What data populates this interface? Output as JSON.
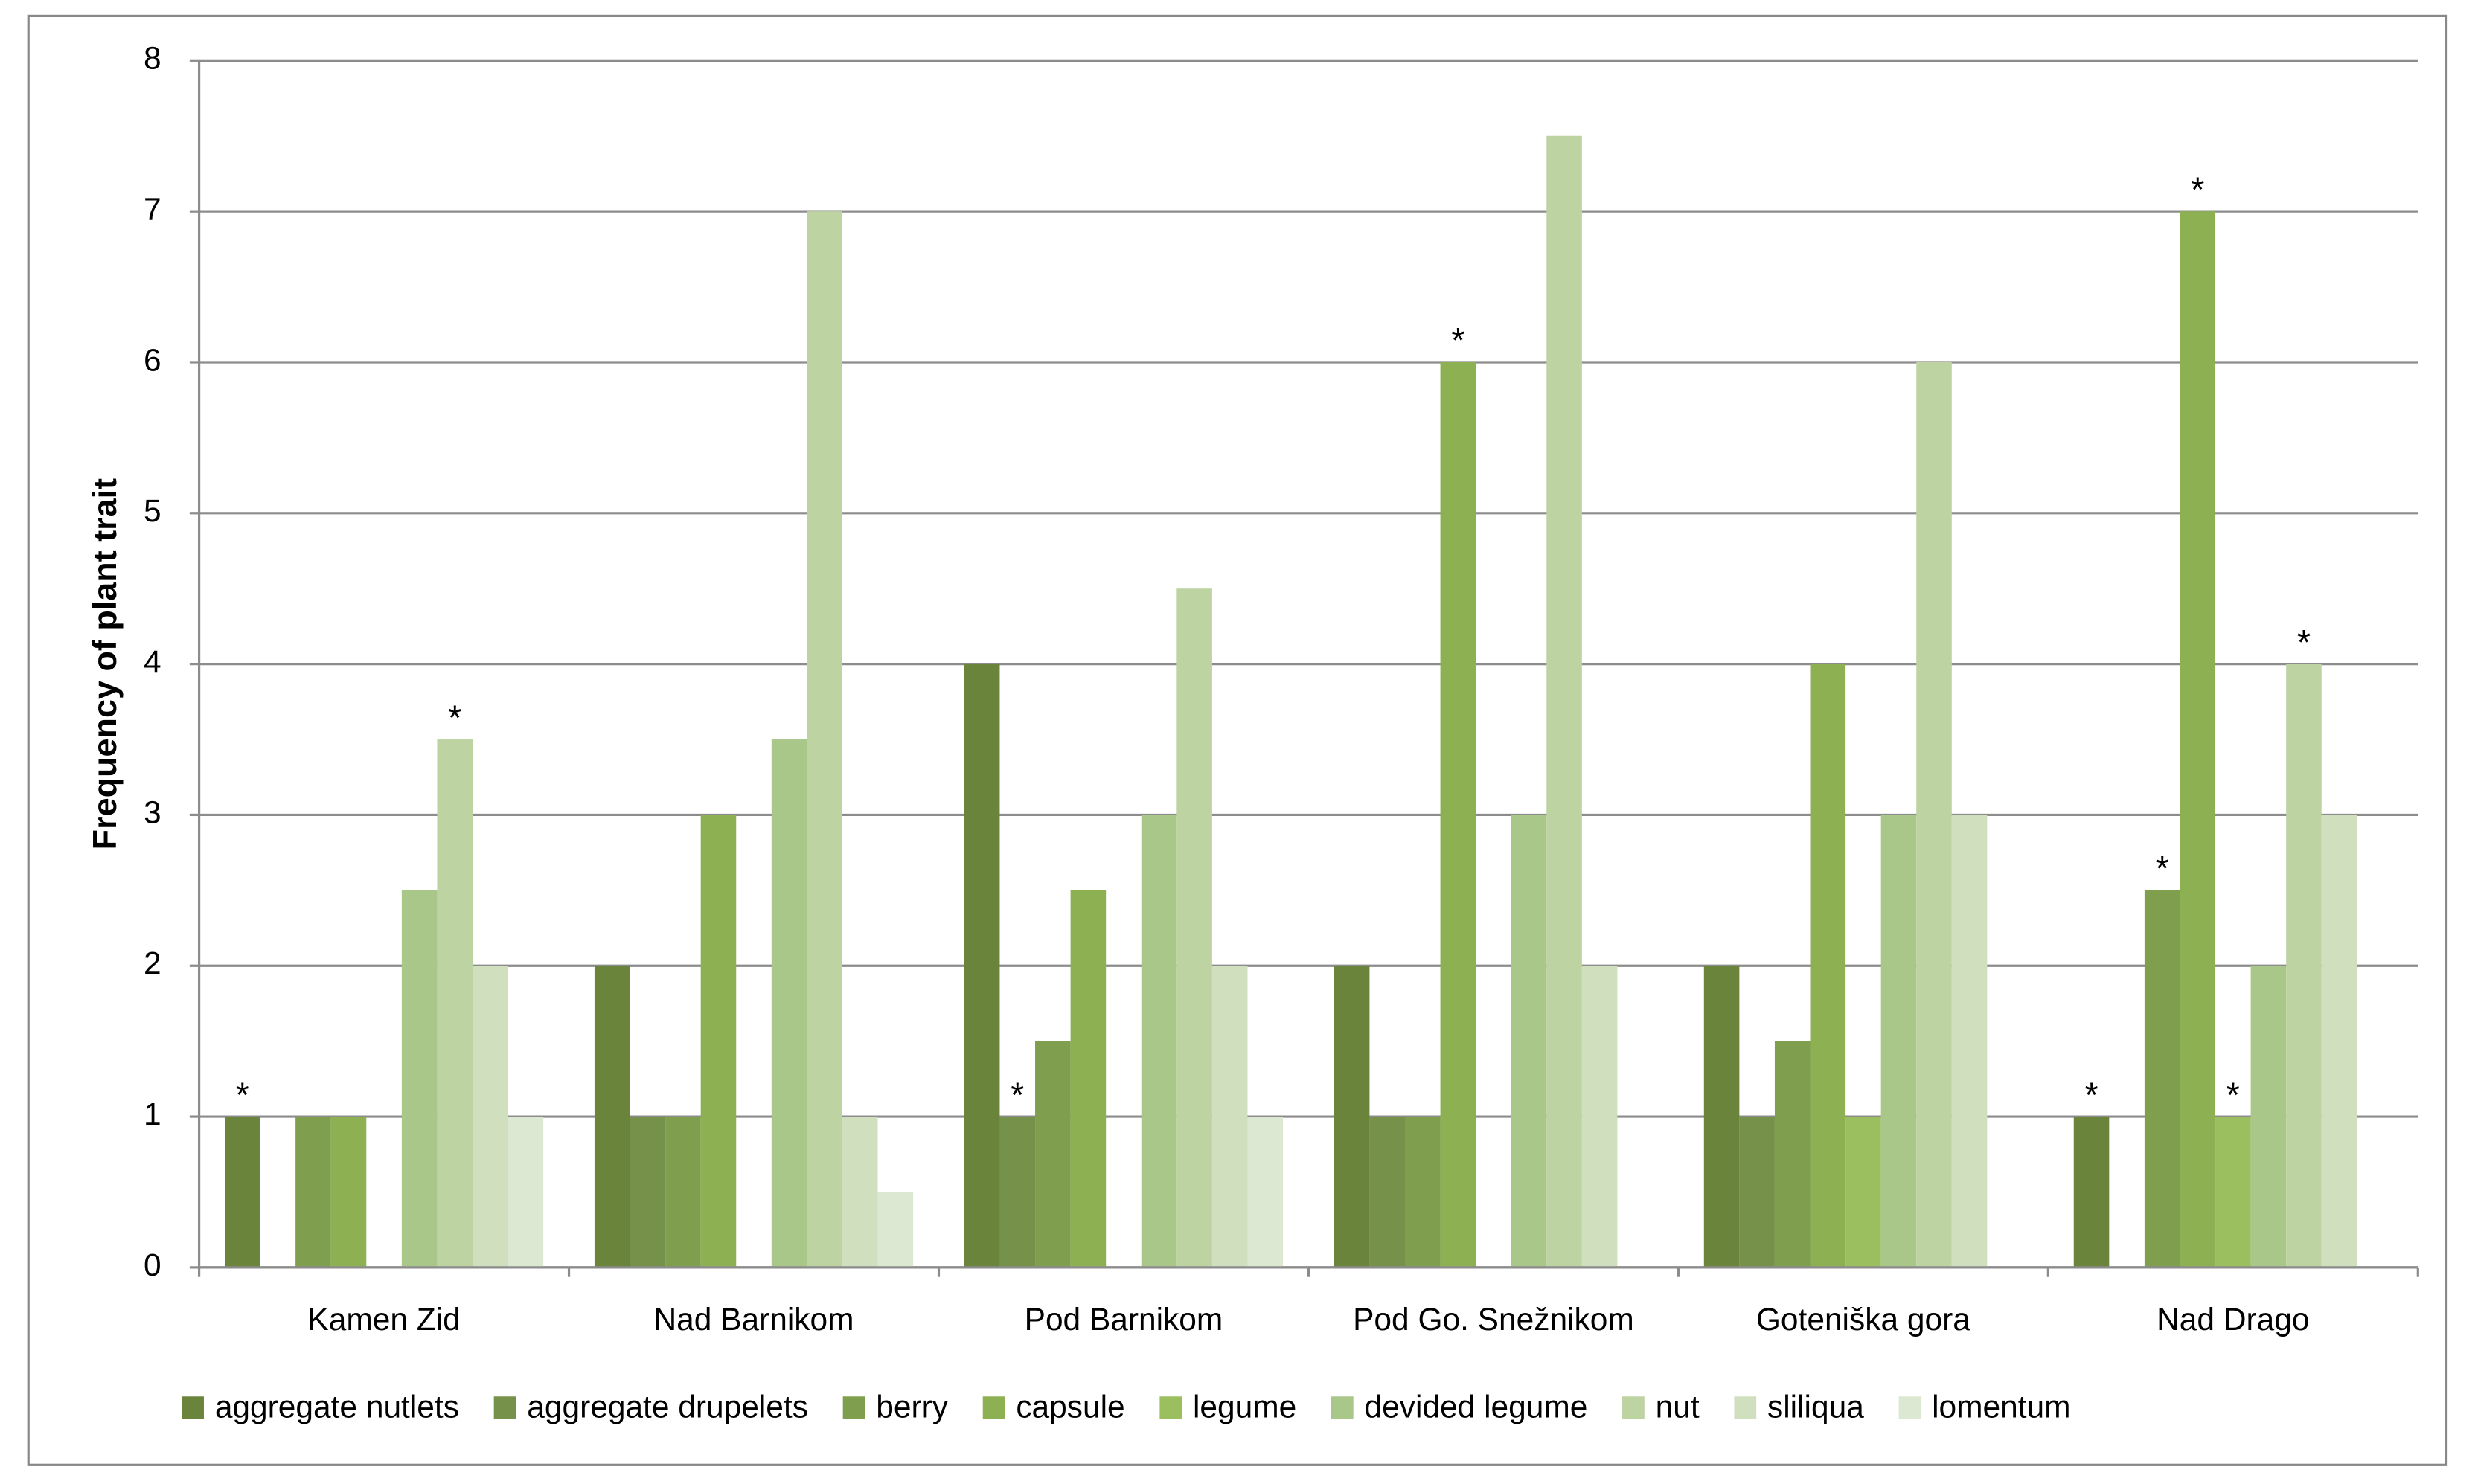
{
  "chart_data": {
    "type": "bar",
    "y_label": "Frequency of plant trait",
    "categories": [
      "Kamen Zid",
      "Nad Barnikom",
      "Pod Barnikom",
      "Pod Go. Snežnikom",
      "Goteniška gora",
      "Nad Drago"
    ],
    "series": [
      {
        "name": "aggregate nutlets",
        "color": "#6b843c",
        "values": [
          1,
          2,
          4,
          2,
          2,
          1
        ]
      },
      {
        "name": "aggregate drupelets",
        "color": "#76924a",
        "values": [
          0,
          1,
          1,
          1,
          1,
          0
        ]
      },
      {
        "name": "berry",
        "color": "#7f9f4e",
        "values": [
          1,
          1,
          1.5,
          1,
          1.5,
          2.5
        ]
      },
      {
        "name": "capsule",
        "color": "#8db053",
        "values": [
          1,
          3,
          2.5,
          6,
          4,
          7
        ]
      },
      {
        "name": "legume",
        "color": "#9bbf5e",
        "values": [
          0,
          0,
          0,
          0,
          1,
          1
        ]
      },
      {
        "name": "devided legume",
        "color": "#aac78a",
        "values": [
          2.5,
          3.5,
          3,
          3,
          3,
          2
        ]
      },
      {
        "name": "nut",
        "color": "#bdd3a2",
        "values": [
          3.5,
          7,
          4.5,
          7.5,
          6,
          4
        ]
      },
      {
        "name": "sliliqua",
        "color": "#d0dfbe",
        "values": [
          2,
          1,
          2,
          2,
          3,
          3
        ]
      },
      {
        "name": "lomentum",
        "color": "#dde8d2",
        "values": [
          1,
          0.5,
          1,
          0,
          0,
          0
        ]
      }
    ],
    "annotations": [
      {
        "text": "*",
        "series": "aggregate nutlets",
        "category": "Kamen Zid"
      },
      {
        "text": "*",
        "series": "nut",
        "category": "Kamen Zid"
      },
      {
        "text": "*",
        "series": "aggregate drupelets",
        "category": "Pod Barnikom"
      },
      {
        "text": "*",
        "series": "capsule",
        "category": "Pod Go. Snežnikom"
      },
      {
        "text": "*",
        "series": "aggregate nutlets",
        "category": "Nad Drago"
      },
      {
        "text": "*",
        "series": "berry",
        "category": "Nad Drago"
      },
      {
        "text": "*",
        "series": "capsule",
        "category": "Nad Drago"
      },
      {
        "text": "*",
        "series": "legume",
        "category": "Nad Drago"
      },
      {
        "text": "*",
        "series": "nut",
        "category": "Nad Drago"
      }
    ],
    "ylim": [
      0,
      8
    ],
    "yticks": [
      0,
      1,
      2,
      3,
      4,
      5,
      6,
      7,
      8
    ],
    "grid": true,
    "legend": "bottom"
  }
}
